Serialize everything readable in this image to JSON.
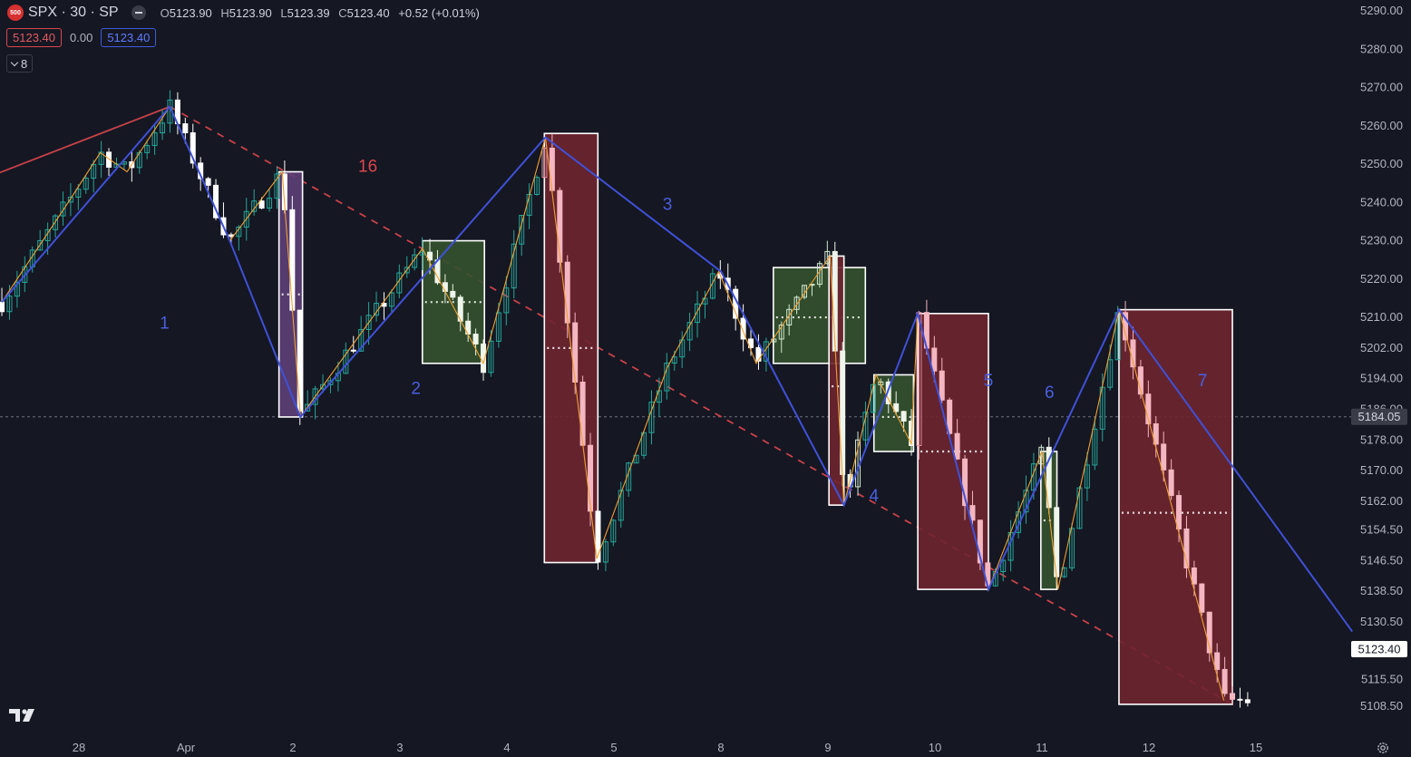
{
  "header": {
    "symbol_badge": "500",
    "title": "SPX · 30 · SP",
    "ohlc": {
      "o_label": "O",
      "o": "5123.90",
      "h_label": "H",
      "h": "5123.90",
      "l_label": "L",
      "l": "5123.39",
      "c_label": "C",
      "c": "5123.40",
      "change": "+0.52 (+0.01%)"
    },
    "sell_price": "5123.40",
    "spread": "0.00",
    "buy_price": "5123.40",
    "indicators_count": "8"
  },
  "icons": {
    "logo": "tradingview-logo-icon",
    "settings": "gear-icon",
    "hide": "eye-hide-icon",
    "collapse": "chevron-down-icon"
  },
  "colors": {
    "background": "#151722",
    "bull_candle": "#26a69a",
    "bear_candle": "#ffffff",
    "bear_zone_candle": "#f4b6c0",
    "bull_zone_candle": "#cfe8cf",
    "major_zigzag": "#3f51d8",
    "minor_zigzag": "#f0a030",
    "trend_line": "#c8424a",
    "bear_zone": "#6e2530",
    "bull_zone": "#34522e",
    "purple_zone": "#5d3f78"
  },
  "chart_data": {
    "type": "candlestick",
    "y_axis": {
      "min": 5104,
      "max": 5293,
      "ticks": [
        "5290.00",
        "5280.00",
        "5270.00",
        "5260.00",
        "5250.00",
        "5240.00",
        "5230.00",
        "5220.00",
        "5210.00",
        "5202.00",
        "5194.00",
        "5186.00",
        "5178.00",
        "5170.00",
        "5162.00",
        "5154.50",
        "5146.50",
        "5138.50",
        "5130.50",
        "5123.40",
        "5115.50",
        "5108.50"
      ]
    },
    "x_axis": {
      "ticks": [
        {
          "label": "28",
          "day": -1
        },
        {
          "label": "Apr",
          "day": 0
        },
        {
          "label": "2",
          "day": 1
        },
        {
          "label": "3",
          "day": 2
        },
        {
          "label": "4",
          "day": 3
        },
        {
          "label": "5",
          "day": 4
        },
        {
          "label": "8",
          "day": 5
        },
        {
          "label": "9",
          "day": 6
        },
        {
          "label": "10",
          "day": 7
        },
        {
          "label": "11",
          "day": 8
        },
        {
          "label": "12",
          "day": 9
        },
        {
          "label": "15",
          "day": 10
        }
      ]
    },
    "price_labels": [
      {
        "value": 5184.05,
        "label": "5184.05",
        "style": "gray"
      },
      {
        "value": 5123.4,
        "label": "5123.40",
        "style": "white"
      }
    ],
    "horizontal_line": 5184.05,
    "wave_labels": [
      {
        "text": "1",
        "day": -0.2,
        "price": 5207,
        "color": "blue"
      },
      {
        "text": "16",
        "day": 1.7,
        "price": 5248,
        "color": "red"
      },
      {
        "text": "2",
        "day": 2.15,
        "price": 5190,
        "color": "blue"
      },
      {
        "text": "3",
        "day": 4.5,
        "price": 5238,
        "color": "blue"
      },
      {
        "text": "4",
        "day": 6.43,
        "price": 5162,
        "color": "blue"
      },
      {
        "text": "5",
        "day": 7.5,
        "price": 5192,
        "color": "blue"
      },
      {
        "text": "6",
        "day": 8.07,
        "price": 5189,
        "color": "blue"
      },
      {
        "text": "7",
        "day": 9.5,
        "price": 5192,
        "color": "blue"
      }
    ],
    "zones": [
      {
        "type": "purple",
        "d0": 0.87,
        "d1": 1.09,
        "top": 5248,
        "bottom": 5184,
        "mid": 5216
      },
      {
        "type": "bull",
        "d0": 2.21,
        "d1": 2.79,
        "top": 5230,
        "bottom": 5198,
        "mid": 5214
      },
      {
        "type": "bear",
        "d0": 3.35,
        "d1": 3.85,
        "top": 5258,
        "bottom": 5146,
        "mid": 5202
      },
      {
        "type": "bull",
        "d0": 5.49,
        "d1": 6.35,
        "top": 5223,
        "bottom": 5198,
        "mid": 5210
      },
      {
        "type": "bear",
        "d0": 6.01,
        "d1": 6.15,
        "top": 5226,
        "bottom": 5161,
        "mid": 5192
      },
      {
        "type": "bull",
        "d0": 6.43,
        "d1": 6.8,
        "top": 5195,
        "bottom": 5175,
        "mid": 5184
      },
      {
        "type": "bear",
        "d0": 6.84,
        "d1": 7.5,
        "top": 5211,
        "bottom": 5139,
        "mid": 5175
      },
      {
        "type": "bull",
        "d0": 7.99,
        "d1": 8.14,
        "top": 5175,
        "bottom": 5139,
        "mid": 5157
      },
      {
        "type": "bear",
        "d0": 8.72,
        "d1": 9.78,
        "top": 5212,
        "bottom": 5109,
        "mid": 5159
      }
    ],
    "major_zigzag": [
      {
        "day": -1.72,
        "price": 5214
      },
      {
        "day": -0.15,
        "price": 5265
      },
      {
        "day": 0.41,
        "price": 5230
      },
      {
        "day": 1.07,
        "price": 5184
      },
      {
        "day": 3.36,
        "price": 5257
      },
      {
        "day": 5.0,
        "price": 5222
      },
      {
        "day": 6.15,
        "price": 5161
      },
      {
        "day": 6.84,
        "price": 5211
      },
      {
        "day": 7.5,
        "price": 5139
      },
      {
        "day": 8.72,
        "price": 5212
      },
      {
        "day": 10.9,
        "price": 5128
      }
    ],
    "minor_zigzag": [
      {
        "day": -1.72,
        "price": 5214
      },
      {
        "day": -1.1,
        "price": 5240
      },
      {
        "day": -0.8,
        "price": 5253
      },
      {
        "day": -0.55,
        "price": 5248
      },
      {
        "day": -0.15,
        "price": 5265
      },
      {
        "day": 0.41,
        "price": 5230
      },
      {
        "day": 0.9,
        "price": 5248
      },
      {
        "day": 1.07,
        "price": 5184
      },
      {
        "day": 2.21,
        "price": 5228
      },
      {
        "day": 2.78,
        "price": 5198
      },
      {
        "day": 3.36,
        "price": 5257
      },
      {
        "day": 3.84,
        "price": 5147
      },
      {
        "day": 4.5,
        "price": 5197
      },
      {
        "day": 4.98,
        "price": 5222
      },
      {
        "day": 5.33,
        "price": 5198
      },
      {
        "day": 6.02,
        "price": 5226
      },
      {
        "day": 6.15,
        "price": 5161
      },
      {
        "day": 6.45,
        "price": 5195
      },
      {
        "day": 6.78,
        "price": 5177
      },
      {
        "day": 6.84,
        "price": 5211
      },
      {
        "day": 7.5,
        "price": 5139
      },
      {
        "day": 8.0,
        "price": 5175
      },
      {
        "day": 8.15,
        "price": 5139
      },
      {
        "day": 8.72,
        "price": 5212
      },
      {
        "day": 9.7,
        "price": 5110
      }
    ],
    "trend_lines": [
      {
        "style": "solid",
        "points": [
          {
            "day": -1.72,
            "price": 5248
          },
          {
            "day": -0.15,
            "price": 5265
          }
        ]
      },
      {
        "style": "dashed",
        "points": [
          {
            "day": -0.15,
            "price": 5265
          },
          {
            "day": 9.78,
            "price": 5109
          }
        ]
      }
    ]
  }
}
